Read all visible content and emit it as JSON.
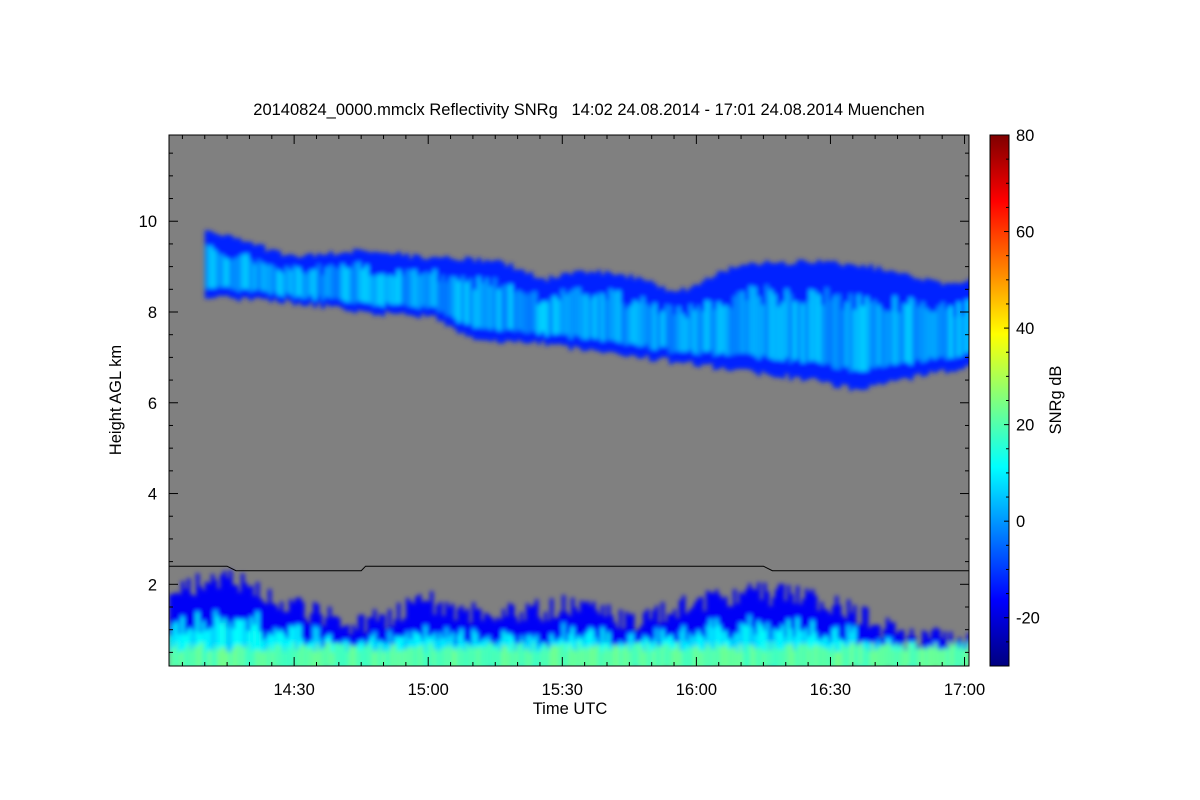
{
  "chart_data": {
    "type": "heatmap",
    "title": "20140824_0000.mmclx Reflectivity SNRg   14:02 24.08.2014 - 17:01 24.08.2014 Muenchen",
    "xlabel": "Time UTC",
    "ylabel": "Height AGL km",
    "colorbar_label": "SNRg dB",
    "x_range_utc": [
      "14:02",
      "17:01"
    ],
    "x_ticks": [
      {
        "time": "14:30",
        "label": "14:30"
      },
      {
        "time": "15:00",
        "label": "15:00"
      },
      {
        "time": "15:30",
        "label": "15:30"
      },
      {
        "time": "16:00",
        "label": "16:00"
      },
      {
        "time": "16:30",
        "label": "16:30"
      },
      {
        "time": "17:00",
        "label": "17:00"
      }
    ],
    "ylim_km": [
      0.2,
      11.9
    ],
    "y_ticks": [
      2,
      4,
      6,
      8,
      10
    ],
    "colorbar_range_db": [
      -30,
      80
    ],
    "colorbar_ticks": [
      -20,
      0,
      20,
      40,
      60,
      80
    ],
    "colormap": "jet",
    "background_color": "#808080",
    "features": [
      {
        "name": "upper cloud layer",
        "top_km": [
          {
            "time": "14:10",
            "value": 9.8
          },
          {
            "time": "14:20",
            "value": 9.5
          },
          {
            "time": "14:30",
            "value": 9.2
          },
          {
            "time": "14:45",
            "value": 9.35
          },
          {
            "time": "15:00",
            "value": 9.2
          },
          {
            "time": "15:15",
            "value": 9.15
          },
          {
            "time": "15:25",
            "value": 8.7
          },
          {
            "time": "15:35",
            "value": 8.9
          },
          {
            "time": "15:45",
            "value": 8.8
          },
          {
            "time": "15:55",
            "value": 8.4
          },
          {
            "time": "16:05",
            "value": 8.9
          },
          {
            "time": "16:15",
            "value": 9.1
          },
          {
            "time": "16:30",
            "value": 9.1
          },
          {
            "time": "16:45",
            "value": 8.9
          },
          {
            "time": "16:55",
            "value": 8.6
          },
          {
            "time": "17:01",
            "value": 8.7
          }
        ],
        "base_km": [
          {
            "time": "14:10",
            "value": 8.3
          },
          {
            "time": "14:20",
            "value": 8.3
          },
          {
            "time": "14:30",
            "value": 8.2
          },
          {
            "time": "14:45",
            "value": 8.0
          },
          {
            "time": "15:00",
            "value": 7.9
          },
          {
            "time": "15:10",
            "value": 7.4
          },
          {
            "time": "15:25",
            "value": 7.3
          },
          {
            "time": "15:40",
            "value": 7.1
          },
          {
            "time": "15:55",
            "value": 6.9
          },
          {
            "time": "16:10",
            "value": 6.7
          },
          {
            "time": "16:25",
            "value": 6.5
          },
          {
            "time": "16:35",
            "value": 6.3
          },
          {
            "time": "16:45",
            "value": 6.5
          },
          {
            "time": "16:55",
            "value": 6.7
          },
          {
            "time": "17:01",
            "value": 6.8
          }
        ],
        "snr_db_range": [
          -20,
          10
        ]
      },
      {
        "name": "boundary layer echoes",
        "top_km": [
          {
            "time": "14:02",
            "value": 1.9
          },
          {
            "time": "14:15",
            "value": 2.3
          },
          {
            "time": "14:30",
            "value": 1.6
          },
          {
            "time": "14:45",
            "value": 1.2
          },
          {
            "time": "15:00",
            "value": 1.7
          },
          {
            "time": "15:15",
            "value": 1.4
          },
          {
            "time": "15:30",
            "value": 1.6
          },
          {
            "time": "15:45",
            "value": 1.3
          },
          {
            "time": "16:00",
            "value": 1.7
          },
          {
            "time": "16:15",
            "value": 1.9
          },
          {
            "time": "16:30",
            "value": 1.7
          },
          {
            "time": "16:45",
            "value": 1.0
          },
          {
            "time": "17:01",
            "value": 0.8
          }
        ],
        "snr_db_range": [
          -20,
          35
        ]
      }
    ],
    "reference_line_km": [
      {
        "time": "14:02",
        "value": 2.4
      },
      {
        "time": "14:15",
        "value": 2.4
      },
      {
        "time": "14:17",
        "value": 2.3
      },
      {
        "time": "14:45",
        "value": 2.3
      },
      {
        "time": "14:46",
        "value": 2.4
      },
      {
        "time": "16:15",
        "value": 2.4
      },
      {
        "time": "16:17",
        "value": 2.3
      },
      {
        "time": "17:01",
        "value": 2.3
      }
    ]
  }
}
